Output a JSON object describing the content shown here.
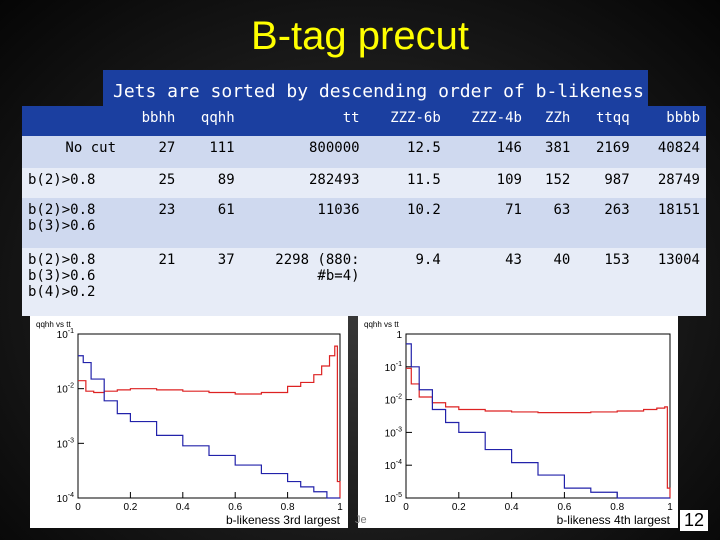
{
  "slide": {
    "title": "B-tag precut",
    "subtitle": "Jets are sorted by descending order of b-likeness",
    "page_number": "12",
    "footer_fragment": "Je"
  },
  "table": {
    "headers": [
      "",
      "bbhh",
      "qqhh",
      "tt",
      "ZZZ-6b",
      "ZZZ-4b",
      "ZZh",
      "ttqq",
      "bbbb"
    ],
    "rows": [
      {
        "cut": [
          "No cut"
        ],
        "values": [
          "27",
          "111",
          "800000",
          "12.5",
          "146",
          "381",
          "2169",
          "40824"
        ]
      },
      {
        "cut": [
          "b(2)>0.8"
        ],
        "values": [
          "25",
          "89",
          "282493",
          "11.5",
          "109",
          "152",
          "987",
          "28749"
        ]
      },
      {
        "cut": [
          "b(2)>0.8",
          "b(3)>0.6"
        ],
        "values": [
          "23",
          "61",
          "11036",
          "10.2",
          "71",
          "63",
          "263",
          "18151"
        ]
      },
      {
        "cut": [
          "b(2)>0.8",
          "b(3)>0.6",
          "b(4)>0.2"
        ],
        "values": [
          "21",
          "37",
          "2298 (880:",
          "9.4",
          "43",
          "40",
          "153",
          "13004"
        ],
        "tt_extra": "#b=4)"
      }
    ]
  },
  "chart_data": [
    {
      "type": "line",
      "title": "qqhh vs tt",
      "xlabel": "b-likeness 3rd largest",
      "ylabel": "",
      "xlim": [
        0,
        1
      ],
      "ylim_log10": [
        -4,
        -1
      ],
      "y_scale": "log",
      "x_ticks": [
        "0",
        "0.2",
        "0.4",
        "0.6",
        "0.8",
        "1"
      ],
      "y_ticks": [
        "10^-4",
        "10^-3",
        "10^-2",
        "10^-1"
      ],
      "series": [
        {
          "color": "#d22",
          "x": [
            0.0,
            0.03,
            0.06,
            0.1,
            0.15,
            0.2,
            0.3,
            0.4,
            0.5,
            0.6,
            0.7,
            0.8,
            0.85,
            0.9,
            0.93,
            0.96,
            0.98,
            0.99,
            1.0
          ],
          "y": [
            0.014,
            0.009,
            0.0085,
            0.009,
            0.0095,
            0.01,
            0.0095,
            0.009,
            0.0085,
            0.008,
            0.0085,
            0.011,
            0.013,
            0.018,
            0.026,
            0.04,
            0.06,
            0.0002,
            0.0001
          ]
        },
        {
          "color": "#22a",
          "x": [
            0.0,
            0.02,
            0.05,
            0.1,
            0.15,
            0.2,
            0.3,
            0.4,
            0.5,
            0.6,
            0.7,
            0.8,
            0.85,
            0.9,
            0.95,
            0.98,
            1.0
          ],
          "y": [
            0.04,
            0.03,
            0.015,
            0.006,
            0.0035,
            0.0025,
            0.0014,
            0.0009,
            0.0006,
            0.0004,
            0.00028,
            0.0002,
            0.00016,
            0.00013,
            0.0001,
            0.0001,
            0.0001
          ]
        }
      ]
    },
    {
      "type": "line",
      "title": "qqhh vs tt",
      "xlabel": "b-likeness 4th largest",
      "ylabel": "",
      "xlim": [
        0,
        1
      ],
      "ylim_log10": [
        -5,
        0
      ],
      "y_scale": "log",
      "x_ticks": [
        "0",
        "0.2",
        "0.4",
        "0.6",
        "0.8",
        "1"
      ],
      "y_ticks": [
        "10^-5",
        "10^-4",
        "10^-3",
        "10^-2",
        "10^-1",
        "1"
      ],
      "series": [
        {
          "color": "#d22",
          "x": [
            0.0,
            0.02,
            0.05,
            0.1,
            0.15,
            0.2,
            0.3,
            0.4,
            0.5,
            0.6,
            0.7,
            0.8,
            0.9,
            0.95,
            0.98,
            0.99,
            1.0
          ],
          "y": [
            0.09,
            0.03,
            0.012,
            0.008,
            0.006,
            0.005,
            0.0045,
            0.0042,
            0.004,
            0.004,
            0.0042,
            0.0045,
            0.005,
            0.0055,
            0.006,
            2e-05,
            1e-05
          ]
        },
        {
          "color": "#22a",
          "x": [
            0.0,
            0.02,
            0.05,
            0.1,
            0.15,
            0.2,
            0.3,
            0.4,
            0.5,
            0.6,
            0.7,
            0.8,
            0.9,
            1.0
          ],
          "y": [
            0.5,
            0.1,
            0.02,
            0.005,
            0.002,
            0.001,
            0.0003,
            0.00012,
            5e-05,
            2e-05,
            1.5e-05,
            1e-05,
            1e-05,
            1e-05
          ]
        }
      ]
    }
  ]
}
